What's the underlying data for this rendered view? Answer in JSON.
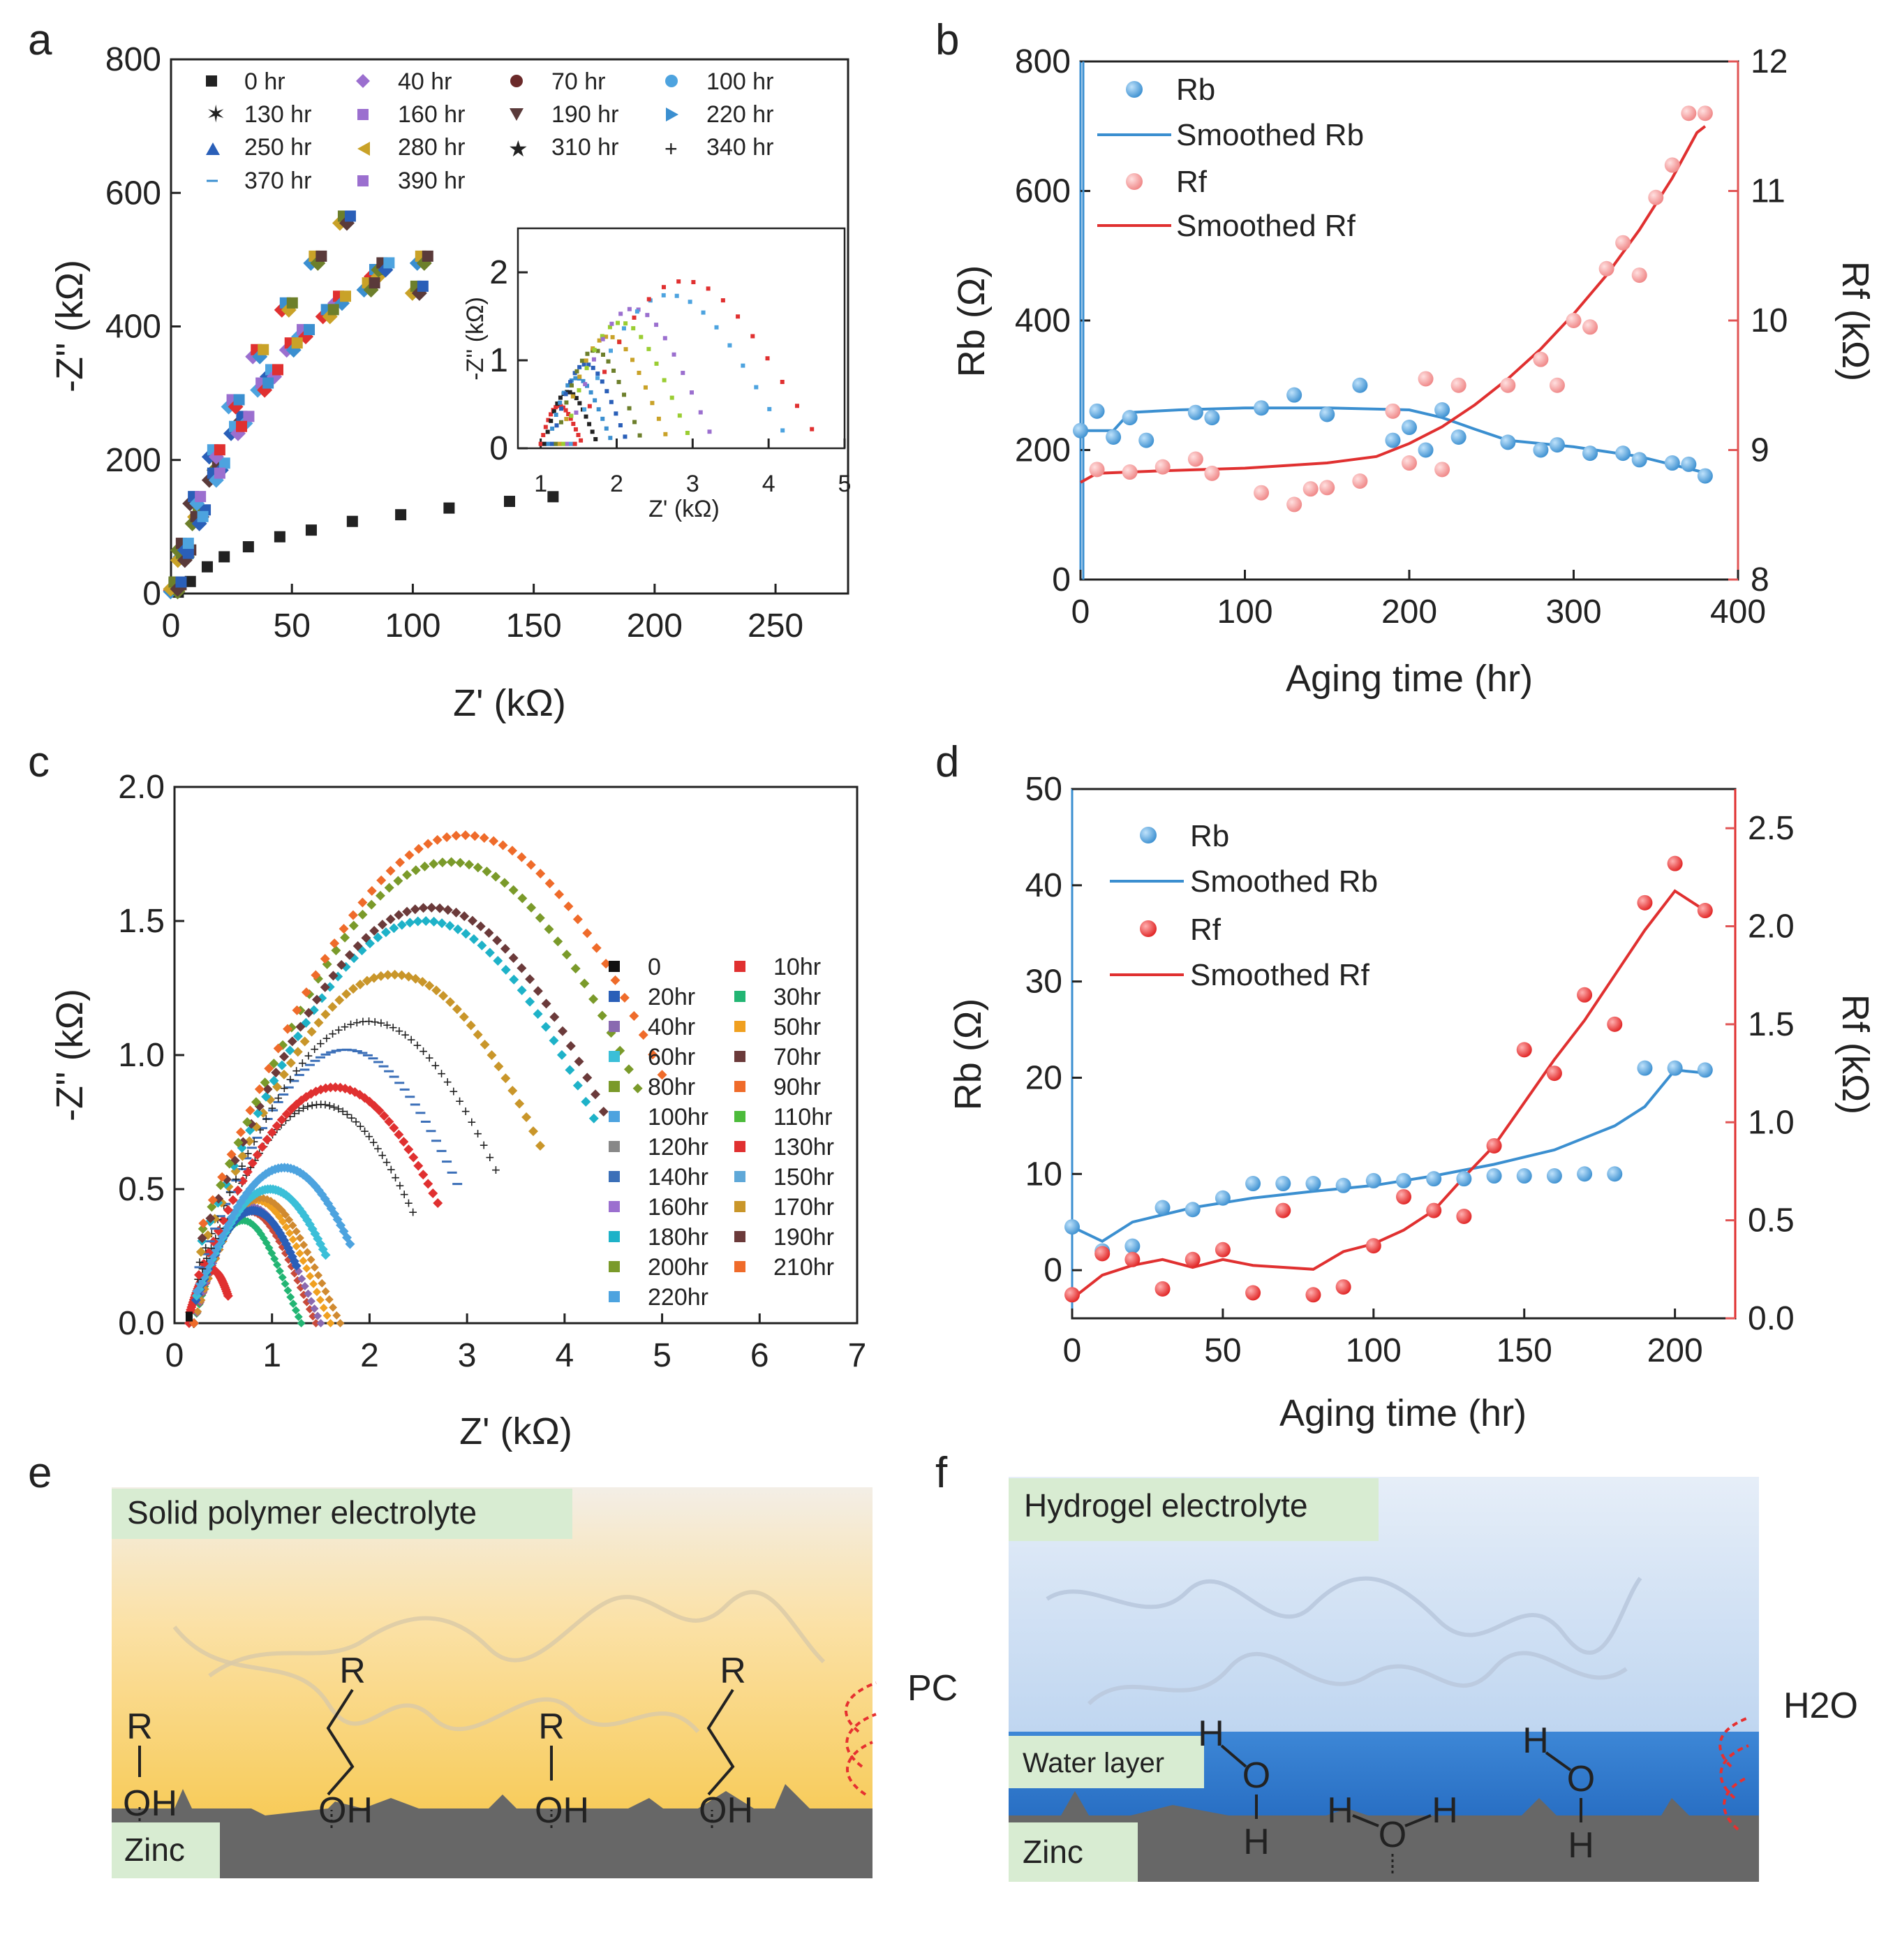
{
  "panel_labels": [
    "a",
    "b",
    "c",
    "d",
    "e",
    "f"
  ],
  "chart_data": [
    {
      "panel": "a",
      "type": "scatter",
      "xlabel": "Z' (kΩ)",
      "ylabel": "-Z'' (kΩ)",
      "xlim": [
        0,
        280
      ],
      "ylim": [
        0,
        800
      ],
      "xticks": [
        0,
        50,
        100,
        150,
        200,
        250
      ],
      "yticks": [
        0,
        200,
        400,
        600,
        800
      ],
      "legend": [
        "0 hr",
        "40 hr",
        "70 hr",
        "100 hr",
        "130 hr",
        "160 hr",
        "190 hr",
        "220 hr",
        "250 hr",
        "280 hr",
        "310 hr",
        "340 hr",
        "370 hr",
        "390 hr"
      ],
      "series": [
        {
          "name": "0 hr",
          "x": [
            3,
            8,
            15,
            22,
            32,
            45,
            58,
            75,
            95,
            115,
            140,
            158
          ],
          "y": [
            2,
            18,
            40,
            55,
            70,
            85,
            95,
            108,
            118,
            128,
            138,
            145
          ]
        },
        {
          "name": "40 hr",
          "x": [
            2,
            6,
            12,
            20,
            30,
            42,
            55,
            70,
            85,
            104
          ],
          "y": [
            10,
            60,
            120,
            190,
            260,
            330,
            390,
            440,
            480,
            500
          ]
        },
        {
          "name": "130 hr",
          "x": [
            2,
            5,
            11,
            18,
            27,
            38,
            50,
            65,
            82,
            102
          ],
          "y": [
            8,
            55,
            110,
            175,
            245,
            310,
            370,
            420,
            460,
            455
          ]
        },
        {
          "name": "390 hr",
          "x": [
            2,
            5,
            10,
            18,
            26,
            36,
            48,
            60,
            72,
            88
          ],
          "y": [
            12,
            70,
            140,
            210,
            285,
            360,
            430,
            500,
            560,
            490
          ]
        }
      ],
      "inset": {
        "xlabel": "Z' (kΩ)",
        "ylabel": "-Z'' (kΩ)",
        "xlim": [
          0.7,
          5
        ],
        "ylim": [
          0,
          2.5
        ],
        "xticks": [
          1,
          2,
          3,
          4,
          5
        ],
        "yticks": [
          0,
          1,
          2
        ]
      }
    },
    {
      "panel": "b",
      "type": "scatter",
      "xlabel": "Aging time (hr)",
      "ylabel": "Rb (Ω)",
      "ylabel_right": "Rf (kΩ)",
      "xlim": [
        0,
        400
      ],
      "ylim": [
        0,
        800
      ],
      "ylim_right": [
        8,
        12
      ],
      "xticks": [
        0,
        100,
        200,
        300,
        400
      ],
      "yticks": [
        0,
        200,
        400,
        600,
        800
      ],
      "yticks_right": [
        8,
        9,
        10,
        11,
        12
      ],
      "legend": [
        "Rb",
        "Smoothed Rb",
        "Rf",
        "Smoothed Rf"
      ],
      "series": [
        {
          "name": "Rb",
          "axis": "left",
          "x": [
            0,
            10,
            20,
            30,
            40,
            70,
            80,
            110,
            130,
            150,
            170,
            190,
            200,
            210,
            220,
            230,
            260,
            280,
            290,
            310,
            330,
            340,
            360,
            370,
            380
          ],
          "y": [
            230,
            260,
            220,
            250,
            215,
            258,
            250,
            265,
            285,
            255,
            300,
            215,
            235,
            200,
            262,
            220,
            212,
            200,
            208,
            195,
            195,
            185,
            180,
            178,
            160
          ]
        },
        {
          "name": "Smoothed Rb",
          "axis": "left",
          "x": [
            0,
            20,
            30,
            60,
            100,
            150,
            200,
            220,
            240,
            260,
            300,
            340,
            380
          ],
          "y": [
            230,
            230,
            258,
            262,
            265,
            265,
            262,
            250,
            232,
            215,
            205,
            190,
            165
          ]
        },
        {
          "name": "Rf",
          "axis": "right",
          "x": [
            10,
            30,
            50,
            70,
            80,
            110,
            130,
            140,
            150,
            170,
            190,
            200,
            210,
            220,
            230,
            260,
            280,
            290,
            300,
            310,
            320,
            330,
            340,
            350,
            360,
            370,
            380
          ],
          "y": [
            8.85,
            8.83,
            8.87,
            8.93,
            8.82,
            8.67,
            8.58,
            8.7,
            8.71,
            8.76,
            9.3,
            8.9,
            9.55,
            8.85,
            9.5,
            9.5,
            9.7,
            9.5,
            10.0,
            9.95,
            10.4,
            10.6,
            10.35,
            10.95,
            11.2,
            11.6,
            11.6
          ]
        },
        {
          "name": "Smoothed Rf",
          "axis": "right",
          "x": [
            0,
            10,
            50,
            100,
            150,
            180,
            200,
            220,
            240,
            260,
            280,
            300,
            320,
            340,
            360,
            375,
            380
          ],
          "y": [
            8.75,
            8.82,
            8.84,
            8.86,
            8.9,
            8.95,
            9.05,
            9.18,
            9.35,
            9.55,
            9.78,
            10.05,
            10.35,
            10.7,
            11.1,
            11.45,
            11.5
          ]
        }
      ]
    },
    {
      "panel": "c",
      "type": "scatter",
      "xlabel": "Z' (kΩ)",
      "ylabel": "-Z'' (kΩ)",
      "xlim": [
        0,
        7
      ],
      "ylim": [
        0,
        2.0
      ],
      "xticks": [
        0,
        1,
        2,
        3,
        4,
        5,
        6,
        7
      ],
      "yticks": [
        0.0,
        0.5,
        1.0,
        1.5,
        2.0
      ],
      "legend": [
        "0",
        "10hr",
        "20hr",
        "30hr",
        "40hr",
        "50hr",
        "60hr",
        "70hr",
        "80hr",
        "90hr",
        "100hr",
        "110hr",
        "120hr",
        "130hr",
        "140hr",
        "150hr",
        "160hr",
        "170hr",
        "180hr",
        "190hr",
        "200hr",
        "210hr",
        "220hr"
      ],
      "series": [
        {
          "name": "10hr",
          "x_start": 0.15,
          "x_end": 0.55,
          "peak": 0.2
        },
        {
          "name": "20hr",
          "x_start": 0.2,
          "x_end": 1.25,
          "peak": 0.42
        },
        {
          "name": "60hr",
          "x_start": 0.2,
          "x_end": 1.55,
          "peak": 0.5
        },
        {
          "name": "100hr",
          "x_start": 0.2,
          "x_end": 1.8,
          "peak": 0.58
        },
        {
          "name": "110hr",
          "x_start": 0.2,
          "x_end": 2.45,
          "peak": 0.82
        },
        {
          "name": "130hr",
          "x_start": 0.2,
          "x_end": 2.7,
          "peak": 0.88
        },
        {
          "name": "140hr",
          "x_start": 0.2,
          "x_end": 2.9,
          "peak": 1.02
        },
        {
          "name": "150hr",
          "x_start": 0.2,
          "x_end": 3.3,
          "peak": 1.13
        },
        {
          "name": "170hr",
          "x_start": 0.2,
          "x_end": 3.75,
          "peak": 1.3
        },
        {
          "name": "180hr",
          "x_start": 0.2,
          "x_end": 4.3,
          "peak": 1.5
        },
        {
          "name": "190hr",
          "x_start": 0.2,
          "x_end": 4.4,
          "peak": 1.55
        },
        {
          "name": "200hr",
          "x_start": 0.2,
          "x_end": 4.75,
          "peak": 1.72
        },
        {
          "name": "210hr",
          "x_start": 0.2,
          "x_end": 5.0,
          "peak": 1.82
        }
      ]
    },
    {
      "panel": "d",
      "type": "scatter",
      "xlabel": "Aging time (hr)",
      "ylabel": "Rb (Ω)",
      "ylabel_right": "Rf (kΩ)",
      "xlim": [
        0,
        220
      ],
      "ylim": [
        -5,
        50
      ],
      "ylim_right": [
        0,
        2.7
      ],
      "xticks": [
        0,
        50,
        100,
        150,
        200
      ],
      "yticks": [
        0,
        10,
        20,
        30,
        40,
        50
      ],
      "yticks_right": [
        0.0,
        0.5,
        1.0,
        1.5,
        2.0,
        2.5
      ],
      "legend": [
        "Rb",
        "Smoothed Rb",
        "Rf",
        "Smoothed Rf"
      ],
      "series": [
        {
          "name": "Rb",
          "axis": "left",
          "x": [
            0,
            10,
            20,
            30,
            40,
            50,
            60,
            70,
            80,
            90,
            100,
            110,
            120,
            130,
            140,
            150,
            160,
            170,
            180,
            190,
            200,
            210
          ],
          "y": [
            4.5,
            2,
            2.5,
            6.5,
            6.3,
            7.5,
            9,
            9,
            9,
            8.8,
            9.3,
            9.3,
            9.5,
            9.5,
            9.8,
            9.8,
            9.8,
            10,
            10,
            21,
            21,
            20.8
          ]
        },
        {
          "name": "Smoothed Rb",
          "axis": "left",
          "x": [
            0,
            10,
            20,
            40,
            60,
            80,
            100,
            120,
            140,
            160,
            180,
            190,
            200,
            210
          ],
          "y": [
            4.5,
            3,
            5,
            6.5,
            7.5,
            8.2,
            8.8,
            9.8,
            11,
            12.5,
            15,
            17,
            20.8,
            20.5
          ]
        },
        {
          "name": "Rf",
          "axis": "right",
          "x": [
            0,
            10,
            20,
            30,
            40,
            50,
            60,
            70,
            80,
            90,
            100,
            110,
            120,
            130,
            140,
            150,
            160,
            170,
            180,
            190,
            200,
            210
          ],
          "y": [
            0.12,
            0.33,
            0.3,
            0.15,
            0.3,
            0.35,
            0.13,
            0.55,
            0.12,
            0.16,
            0.37,
            0.62,
            0.55,
            0.52,
            0.88,
            1.37,
            1.25,
            1.65,
            1.5,
            2.12,
            2.32,
            2.08
          ]
        },
        {
          "name": "Smoothed Rf",
          "axis": "right",
          "x": [
            0,
            10,
            20,
            30,
            40,
            50,
            60,
            70,
            80,
            90,
            100,
            110,
            120,
            130,
            140,
            150,
            160,
            170,
            180,
            190,
            200,
            210
          ],
          "y": [
            0.1,
            0.22,
            0.27,
            0.3,
            0.26,
            0.3,
            0.27,
            0.26,
            0.25,
            0.34,
            0.38,
            0.45,
            0.55,
            0.72,
            0.88,
            1.1,
            1.32,
            1.52,
            1.75,
            1.98,
            2.18,
            2.08
          ]
        }
      ]
    }
  ],
  "schematic_e": {
    "electrolyte_label": "Solid polymer electrolyte",
    "substrate_label": "Zinc",
    "molecule_label": "PC",
    "groups": [
      {
        "top": "R",
        "bottom": "OH"
      },
      {
        "top": "R",
        "bottom": "OH"
      },
      {
        "top": "R",
        "bottom": "OH"
      },
      {
        "top": "R",
        "bottom": "OH"
      }
    ]
  },
  "schematic_f": {
    "electrolyte_label": "Hydrogel electrolyte",
    "layer_label": "Water layer",
    "substrate_label": "Zinc",
    "molecule_label": "H2O",
    "atoms": {
      "h": "H",
      "o": "O"
    }
  },
  "colors": {
    "blue": "#3b8fd0",
    "red": "#e03030",
    "pink": "#ef8585",
    "axis_right": "#e05555",
    "zinc": "#666666"
  }
}
